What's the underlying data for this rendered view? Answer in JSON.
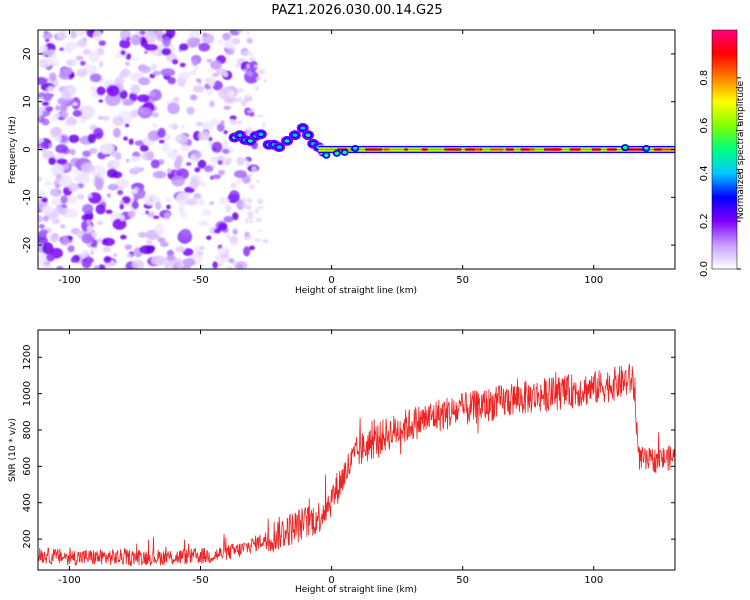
{
  "page": {
    "title": "PAZ1.2026.030.00.14.G25"
  },
  "chart_data": [
    {
      "type": "heatmap",
      "title": "PAZ1.2026.030.00.14.G25",
      "xlabel": "Height of straight line (km)",
      "ylabel": "Frequency (Hz)",
      "xlim": [
        -112,
        131
      ],
      "ylim": [
        -25,
        25
      ],
      "xticks": [
        -100,
        -50,
        0,
        50,
        100
      ],
      "yticks": [
        20,
        10,
        0,
        -10,
        -20
      ],
      "colorbar": {
        "label": "Normalized spectral amplitude",
        "range": [
          0,
          1
        ],
        "ticks": [
          0.0,
          0.2,
          0.4,
          0.6,
          0.8
        ],
        "tick_labels": [
          "0.0",
          "0.2",
          "0.4",
          "0.6",
          "0.8"
        ],
        "colormap": [
          "#ffffff",
          "#c8a0ff",
          "#7f00ff",
          "#0000ff",
          "#00c8ff",
          "#00ff80",
          "#80ff00",
          "#ffff00",
          "#ff8000",
          "#ff0000",
          "#ff0080"
        ]
      },
      "features": [
        {
          "name": "noise-speckle",
          "x_range": [
            -112,
            -35
          ],
          "freq_range": [
            -25,
            25
          ],
          "amplitude": 0.15
        },
        {
          "name": "transition-signal",
          "x_range": [
            -38,
            -5
          ],
          "freq_center": [
            2,
            5
          ],
          "amplitude": 0.4
        },
        {
          "name": "carrier-line",
          "x_range": [
            -5,
            131
          ],
          "freq_center": 0,
          "amplitude": 1.0
        }
      ]
    },
    {
      "type": "line",
      "xlabel": "Height of straight line (km)",
      "ylabel": "SNR (10 * v/v)",
      "xlim": [
        -112,
        131
      ],
      "ylim": [
        30,
        1350
      ],
      "xticks": [
        -100,
        -50,
        0,
        50,
        100
      ],
      "yticks": [
        200,
        400,
        600,
        800,
        1000,
        1200
      ],
      "series": [
        {
          "name": "SNR",
          "color": "#ee2222",
          "x": [
            -112,
            -100,
            -80,
            -60,
            -45,
            -35,
            -25,
            -15,
            -5,
            0,
            5,
            10,
            20,
            30,
            40,
            50,
            60,
            70,
            80,
            90,
            100,
            110,
            115,
            117,
            120,
            131
          ],
          "y": [
            110,
            100,
            100,
            100,
            110,
            140,
            200,
            260,
            320,
            420,
            560,
            680,
            770,
            830,
            880,
            910,
            940,
            970,
            990,
            1010,
            1030,
            1060,
            1080,
            650,
            630,
            650
          ]
        }
      ]
    }
  ]
}
